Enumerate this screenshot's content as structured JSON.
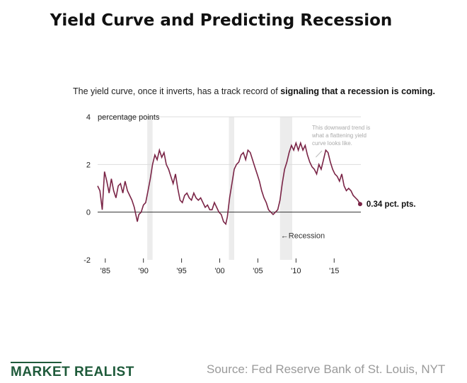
{
  "header": {
    "title": "Yield Curve and Predicting Recession",
    "subtitle_pre": "The yield curve, once it inverts, has a track record of ",
    "subtitle_bold": "signaling that a recession is coming."
  },
  "footer": {
    "brand": "MARKET REALIST",
    "source": "Source: Fed Reserve Bank of St. Louis, NYT"
  },
  "colors": {
    "line": "#7a2446",
    "recession": "#ececec",
    "grid": "#dddddd",
    "zero": "#333333",
    "brand": "#1e5a3a"
  },
  "chart_data": {
    "type": "line",
    "title": "",
    "ylabel": "percentage points",
    "xlim": [
      1984,
      2018.5
    ],
    "ylim": [
      -2,
      4
    ],
    "x_ticks": [
      1985,
      1990,
      1995,
      2000,
      2005,
      2010,
      2015
    ],
    "x_tick_labels": [
      "'85",
      "'90",
      "'95",
      "'00",
      "'05",
      "'10",
      "'15"
    ],
    "y_ticks": [
      -2,
      0,
      2,
      4
    ],
    "y_tick_labels": [
      "-2",
      "0",
      "2",
      "4"
    ],
    "recessions": [
      [
        1990.5,
        1991.2
      ],
      [
        2001.2,
        2001.9
      ],
      [
        2007.9,
        2009.5
      ]
    ],
    "annotations": {
      "last_value": "0.34 pct. pts.",
      "recession_label": "←Recession",
      "note_lines": [
        "This downward trend is",
        "what a flattening yield",
        "curve looks like."
      ]
    },
    "series": [
      {
        "x": [
          1984.0,
          1984.3,
          1984.6,
          1984.9,
          1985.2,
          1985.5,
          1985.8,
          1986.1,
          1986.4,
          1986.7,
          1987.0,
          1987.3,
          1987.6,
          1987.9,
          1988.2,
          1988.5,
          1988.8,
          1989.0,
          1989.2,
          1989.4,
          1989.7,
          1990.0,
          1990.3,
          1990.6,
          1990.9,
          1991.2,
          1991.5,
          1991.8,
          1992.1,
          1992.4,
          1992.7,
          1993.0,
          1993.3,
          1993.6,
          1993.9,
          1994.2,
          1994.5,
          1994.8,
          1995.1,
          1995.4,
          1995.7,
          1996.0,
          1996.3,
          1996.6,
          1996.9,
          1997.2,
          1997.5,
          1997.8,
          1998.1,
          1998.4,
          1998.7,
          1999.0,
          1999.3,
          1999.6,
          1999.9,
          2000.2,
          2000.5,
          2000.8,
          2001.0,
          2001.3,
          2001.6,
          2001.9,
          2002.2,
          2002.5,
          2002.8,
          2003.1,
          2003.4,
          2003.7,
          2004.0,
          2004.3,
          2004.6,
          2004.9,
          2005.2,
          2005.5,
          2005.8,
          2006.1,
          2006.4,
          2006.7,
          2007.0,
          2007.3,
          2007.6,
          2007.9,
          2008.2,
          2008.5,
          2008.8,
          2009.1,
          2009.4,
          2009.7,
          2010.0,
          2010.3,
          2010.6,
          2010.9,
          2011.2,
          2011.5,
          2011.8,
          2012.1,
          2012.4,
          2012.7,
          2013.0,
          2013.3,
          2013.6,
          2013.9,
          2014.2,
          2014.5,
          2014.8,
          2015.1,
          2015.4,
          2015.7,
          2016.0,
          2016.3,
          2016.6,
          2016.9,
          2017.2,
          2017.5,
          2017.8,
          2018.1,
          2018.4
        ],
        "values": [
          1.1,
          0.9,
          0.1,
          1.7,
          1.3,
          0.8,
          1.4,
          0.9,
          0.6,
          1.1,
          1.2,
          0.8,
          1.3,
          0.9,
          0.7,
          0.5,
          0.2,
          -0.1,
          -0.4,
          -0.1,
          0.0,
          0.3,
          0.4,
          0.9,
          1.4,
          2.0,
          2.4,
          2.2,
          2.6,
          2.3,
          2.5,
          2.0,
          1.8,
          1.5,
          1.2,
          1.6,
          1.0,
          0.5,
          0.4,
          0.7,
          0.8,
          0.6,
          0.5,
          0.8,
          0.6,
          0.5,
          0.6,
          0.4,
          0.2,
          0.3,
          0.1,
          0.1,
          0.4,
          0.2,
          0.0,
          -0.1,
          -0.4,
          -0.5,
          -0.2,
          0.6,
          1.2,
          1.8,
          2.0,
          2.1,
          2.4,
          2.5,
          2.2,
          2.6,
          2.5,
          2.2,
          1.9,
          1.6,
          1.3,
          0.9,
          0.6,
          0.4,
          0.1,
          0.0,
          -0.1,
          0.0,
          0.1,
          0.5,
          1.2,
          1.8,
          2.1,
          2.5,
          2.8,
          2.6,
          2.9,
          2.6,
          2.9,
          2.6,
          2.8,
          2.4,
          2.1,
          1.9,
          1.8,
          1.6,
          2.0,
          1.8,
          2.2,
          2.6,
          2.5,
          2.1,
          1.8,
          1.6,
          1.5,
          1.3,
          1.6,
          1.1,
          0.9,
          1.0,
          0.9,
          0.7,
          0.6,
          0.5,
          0.34
        ]
      }
    ]
  }
}
